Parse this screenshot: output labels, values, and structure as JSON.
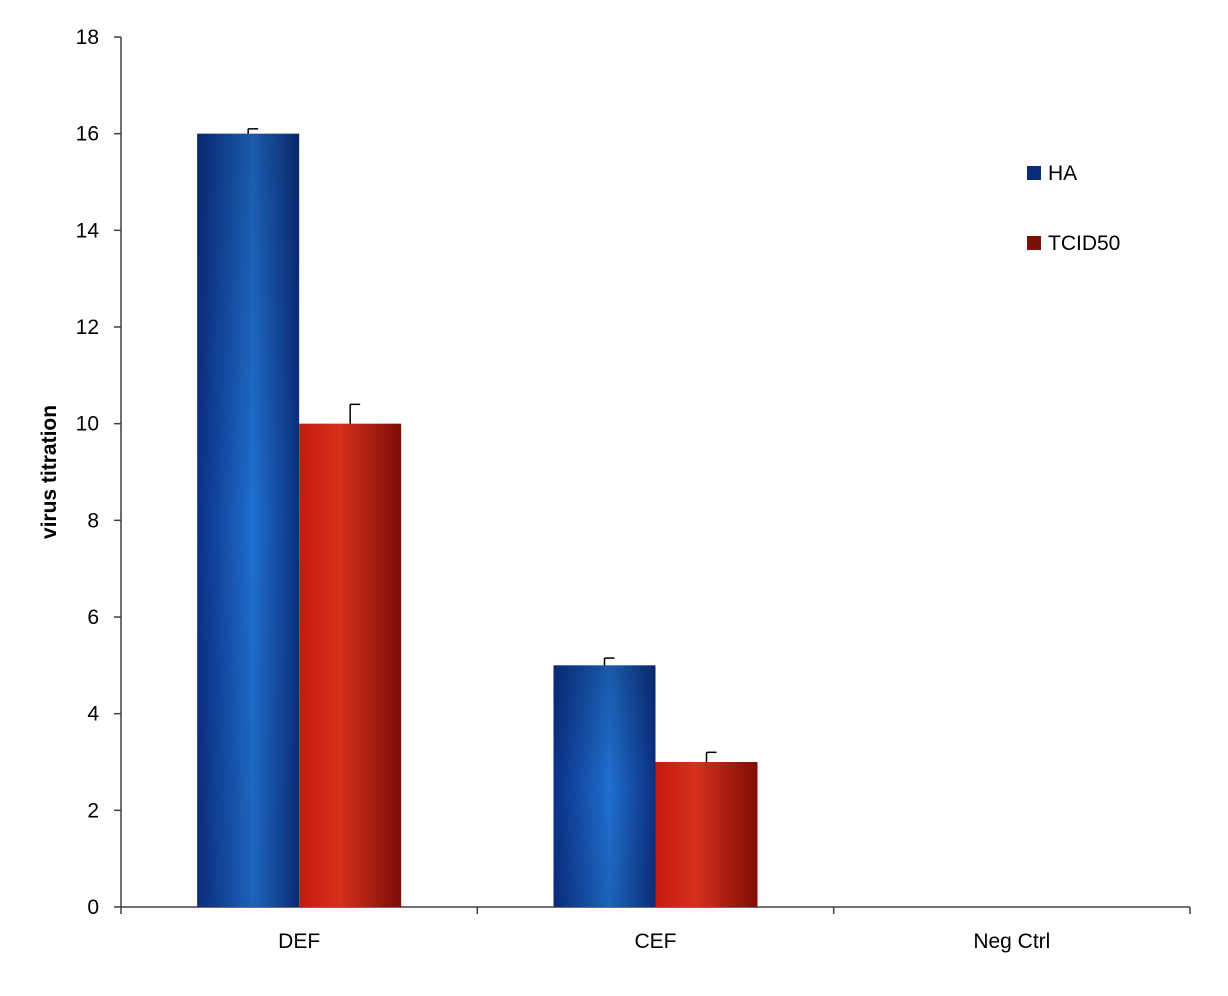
{
  "chart_data": {
    "type": "bar",
    "title": "",
    "xlabel": "",
    "ylabel": "virus titration",
    "ylim": [
      0,
      18
    ],
    "yticks": [
      0,
      2,
      4,
      6,
      8,
      10,
      12,
      14,
      16,
      18
    ],
    "grid": false,
    "legend_position": "top-right",
    "categories": [
      "DEF",
      "CEF",
      "Neg Ctrl"
    ],
    "series": [
      {
        "name": "HA",
        "values": [
          16,
          5,
          0
        ],
        "errors": [
          0.1,
          0.15,
          0
        ],
        "color": "#0a2a7a"
      },
      {
        "name": "TCID50",
        "values": [
          10,
          3,
          0
        ],
        "errors": [
          0.4,
          0.2,
          0
        ],
        "color": "#7a1008"
      }
    ]
  }
}
